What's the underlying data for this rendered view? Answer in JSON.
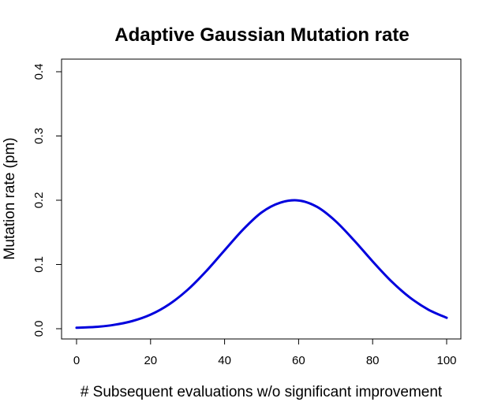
{
  "chart_data": {
    "type": "line",
    "title": "Adaptive Gaussian Mutation rate",
    "xlabel": "# Subsequent evaluations w/o significant improvement",
    "ylabel": "Mutation rate (pm)",
    "xlim": [
      0,
      100
    ],
    "ylim": [
      0,
      0.4
    ],
    "x_ticks": [
      0,
      20,
      40,
      60,
      80,
      100
    ],
    "x_tick_labels": [
      "0",
      "20",
      "40",
      "60",
      "80",
      "100"
    ],
    "y_ticks": [
      0.0,
      0.1,
      0.2,
      0.3,
      0.4
    ],
    "y_tick_labels": [
      "0.0",
      "0.1",
      "0.2",
      "0.3",
      "0.4"
    ],
    "grid": false,
    "series": [
      {
        "color": "#0000dd",
        "x": [
          0,
          5,
          10,
          15,
          20,
          25,
          30,
          35,
          40,
          45,
          50,
          55,
          60,
          65,
          70,
          75,
          80,
          85,
          90,
          95,
          100
        ],
        "y": [
          0.0015,
          0.0027,
          0.0059,
          0.0118,
          0.0219,
          0.0379,
          0.0605,
          0.0894,
          0.1221,
          0.1544,
          0.181,
          0.1961,
          0.1996,
          0.1896,
          0.1674,
          0.1374,
          0.1048,
          0.0742,
          0.0489,
          0.0299,
          0.017
        ]
      }
    ]
  }
}
